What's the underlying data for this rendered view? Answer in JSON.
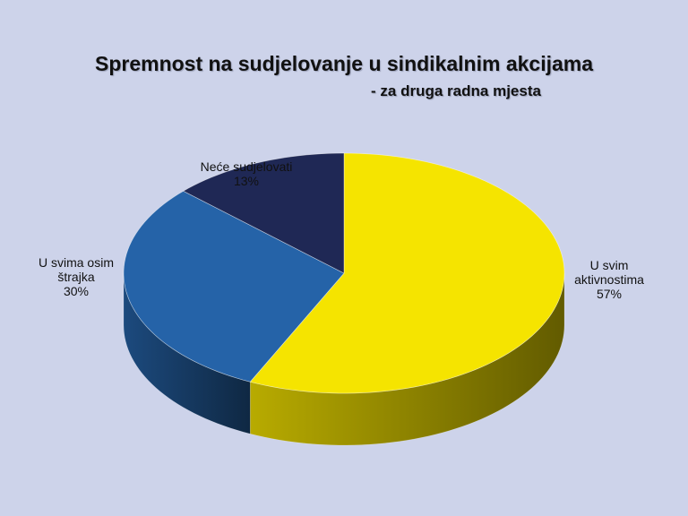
{
  "chart_data": {
    "type": "pie",
    "title": "Spremnost na sudjelovanje u sindikalnim akcijama",
    "subtitle": "- za druga radna mjesta",
    "categories": [
      "U svim aktivnostima",
      "U svima osim štrajka",
      "Neće sudjelovati"
    ],
    "values": [
      57,
      30,
      13
    ],
    "value_labels": [
      "57%",
      "30%",
      "13%"
    ],
    "colors": [
      "#f5e400",
      "#2563a8",
      "#1f2855"
    ]
  }
}
